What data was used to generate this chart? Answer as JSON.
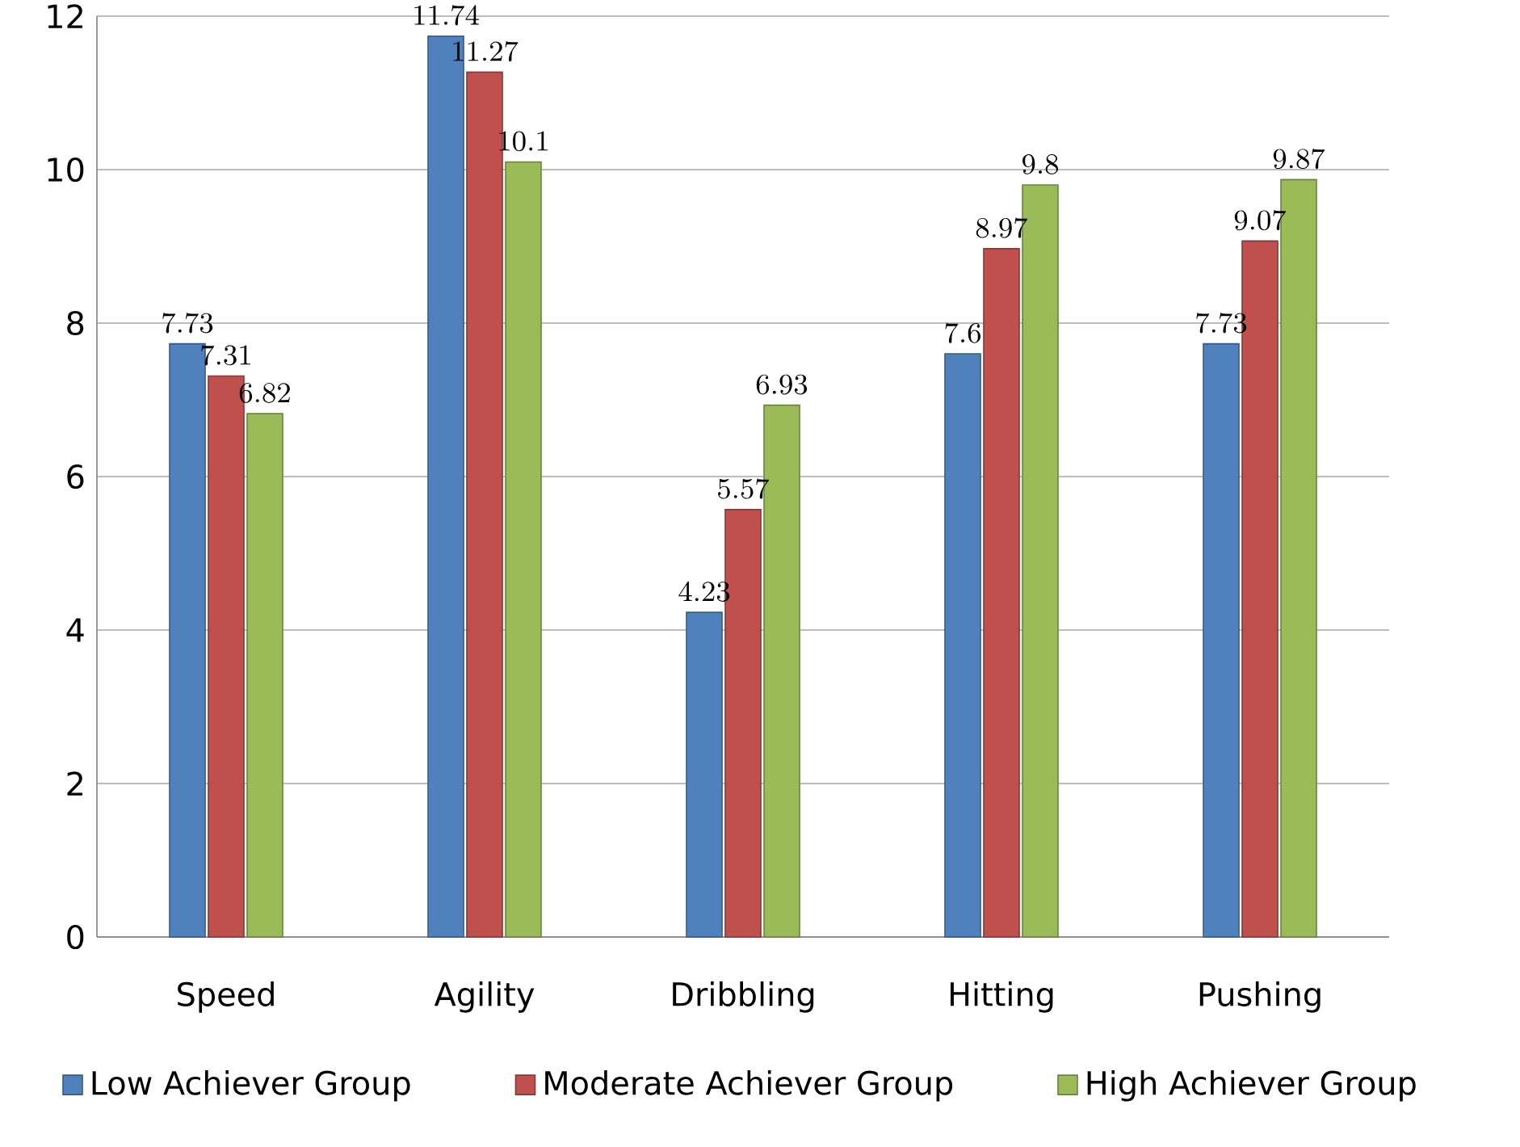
{
  "chart_data": {
    "type": "bar",
    "categories": [
      "Speed",
      "Agility",
      "Dribbling",
      "Hitting",
      "Pushing"
    ],
    "series": [
      {
        "name": "Low Achiever Group",
        "color": "#4f81bd",
        "values": [
          7.73,
          11.74,
          4.23,
          7.6,
          7.73
        ]
      },
      {
        "name": "Moderate Achiever Group",
        "color": "#c0504d",
        "values": [
          7.31,
          11.27,
          5.57,
          8.97,
          9.07
        ]
      },
      {
        "name": "High Achiever Group",
        "color": "#9bbb59",
        "values": [
          6.82,
          10.1,
          6.93,
          9.8,
          9.87
        ]
      }
    ],
    "ylim": [
      0,
      12
    ],
    "yticks": [
      0,
      2,
      4,
      6,
      8,
      10,
      12
    ],
    "grid": "y",
    "legend": "bottom",
    "data_labels": true
  }
}
